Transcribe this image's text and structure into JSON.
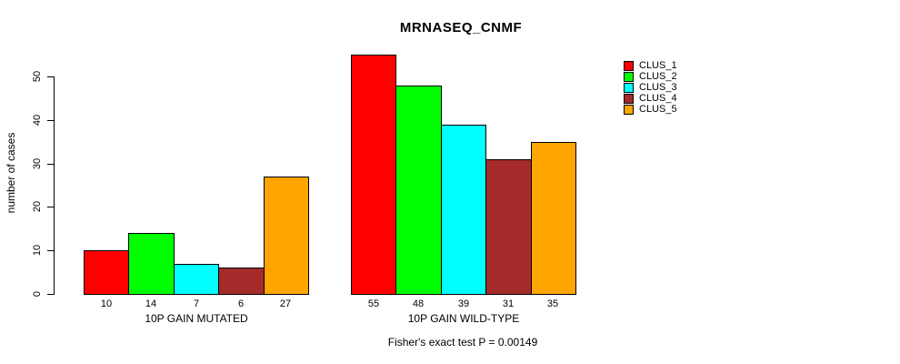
{
  "title": "MRNASEQ_CNMF",
  "footer": "Fisher's exact test P = 0.00149",
  "y_axis": {
    "label": "number of cases",
    "tick_labels": [
      "0",
      "10",
      "20",
      "30",
      "40",
      "50"
    ]
  },
  "legend": {
    "items": [
      {
        "label": "CLUS_1",
        "color": "#FF0000"
      },
      {
        "label": "CLUS_2",
        "color": "#00FF00"
      },
      {
        "label": "CLUS_3",
        "color": "#00FFFF"
      },
      {
        "label": "CLUS_4",
        "color": "#A52A2A"
      },
      {
        "label": "CLUS_5",
        "color": "#FFA500"
      }
    ]
  },
  "chart_data": {
    "type": "bar",
    "title": "MRNASEQ_CNMF",
    "xlabel": "",
    "ylabel": "number of cases",
    "ylim": [
      0,
      55
    ],
    "yticks": [
      0,
      10,
      20,
      30,
      40,
      50
    ],
    "grid": false,
    "legend_position": "top-right",
    "series": [
      {
        "name": "CLUS_1",
        "color": "#FF0000"
      },
      {
        "name": "CLUS_2",
        "color": "#00FF00"
      },
      {
        "name": "CLUS_3",
        "color": "#00FFFF"
      },
      {
        "name": "CLUS_4",
        "color": "#A52A2A"
      },
      {
        "name": "CLUS_5",
        "color": "#FFA500"
      }
    ],
    "groups": [
      {
        "label": "10P GAIN MUTATED",
        "values": [
          10,
          14,
          7,
          6,
          27
        ]
      },
      {
        "label": "10P GAIN WILD-TYPE",
        "values": [
          55,
          48,
          39,
          31,
          35
        ]
      }
    ],
    "bar_value_labels_shown": true,
    "annotation": "Fisher's exact test P = 0.00149"
  }
}
